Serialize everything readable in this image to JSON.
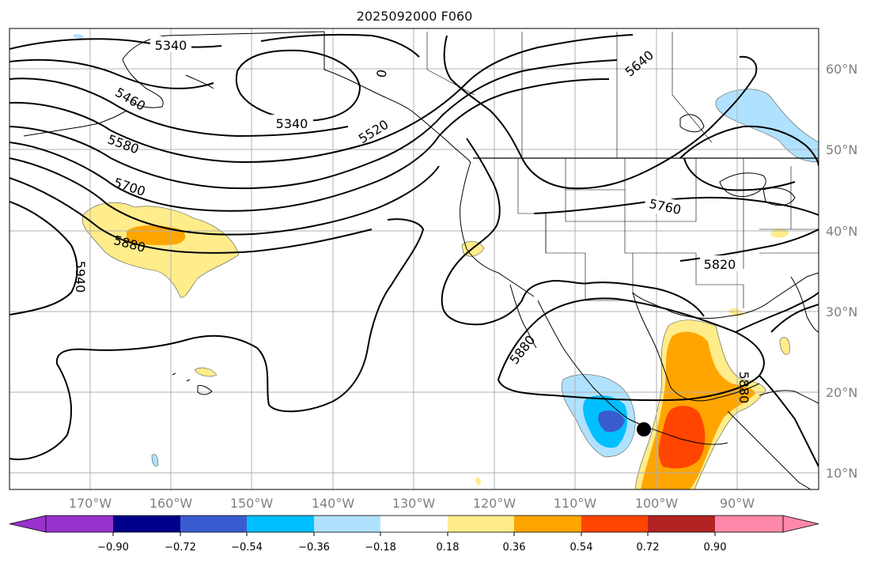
{
  "title": "2025092000 F060",
  "map": {
    "lat_labels": [
      "60°N",
      "50°N",
      "40°N",
      "30°N",
      "20°N",
      "10°N"
    ],
    "lon_labels": [
      "170°W",
      "160°W",
      "150°W",
      "140°W",
      "130°W",
      "120°W",
      "110°W",
      "100°W",
      "90°W"
    ],
    "contour_labels": [
      "5340",
      "5340",
      "5460",
      "5580",
      "5700",
      "5880",
      "5940",
      "5520",
      "0",
      "5640",
      "5760",
      "5820",
      "5880",
      "5880"
    ],
    "marker": "storm-center",
    "colors": {
      "land_outline": "#000000",
      "grid": "#b0b0b0",
      "contour": "#000000"
    }
  },
  "colorbar": {
    "ticks": [
      "−0.90",
      "−0.72",
      "−0.54",
      "−0.36",
      "−0.18",
      "0.18",
      "0.36",
      "0.54",
      "0.72",
      "0.90"
    ],
    "colors": [
      "#9932cc",
      "#00008b",
      "#3a5bcf",
      "#00bfff",
      "#b0e2ff",
      "#ffffff",
      "#ffec8b",
      "#ffa500",
      "#ff4500",
      "#b22222",
      "#ff88aa"
    ]
  }
}
